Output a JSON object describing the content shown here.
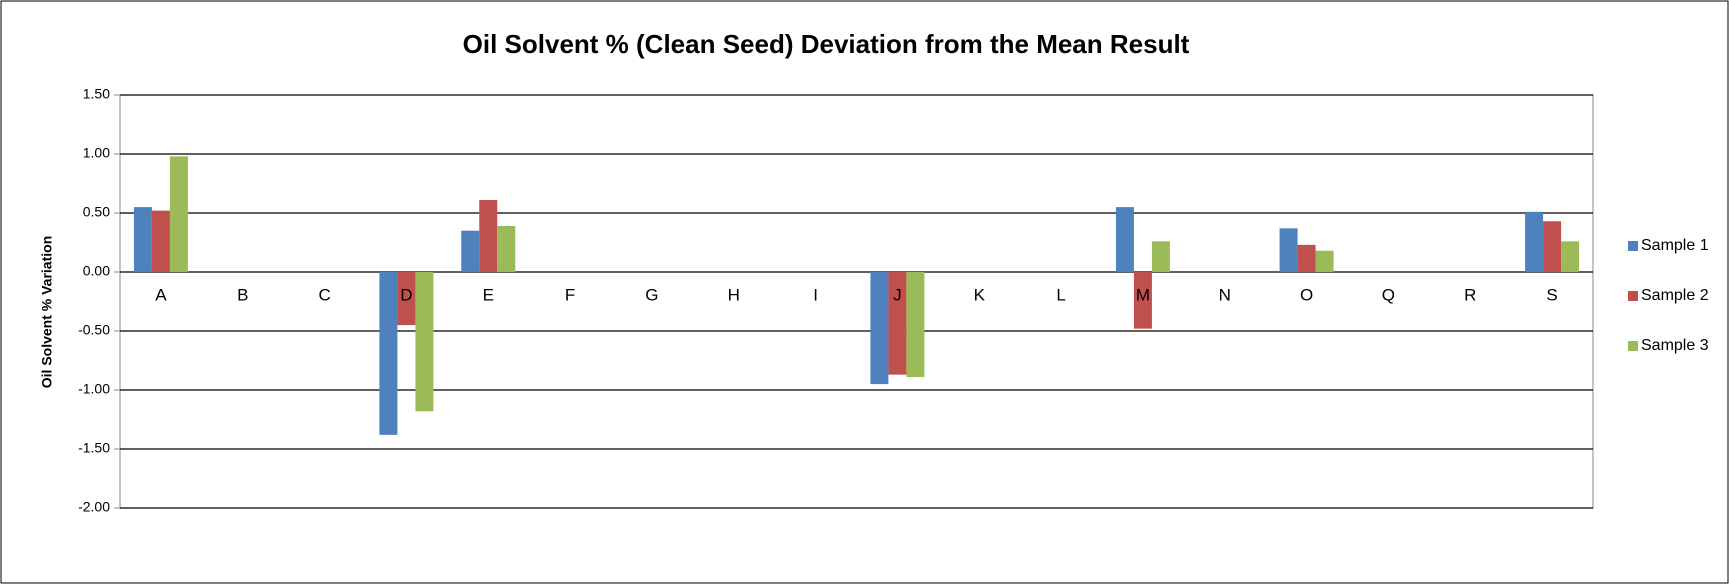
{
  "chart_data": {
    "type": "bar",
    "title": "Oil Solvent % (Clean Seed) Deviation from the Mean Result",
    "y_label": "Oil Solvent % Variation",
    "categories": [
      "A",
      "B",
      "C",
      "D",
      "E",
      "F",
      "G",
      "H",
      "I",
      "J",
      "K",
      "L",
      "M",
      "N",
      "O",
      "Q",
      "R",
      "S"
    ],
    "series": [
      {
        "name": "Sample 1",
        "color": "#4f81bd",
        "values": [
          0.55,
          null,
          null,
          -1.38,
          0.35,
          null,
          null,
          null,
          null,
          -0.95,
          null,
          null,
          0.55,
          null,
          0.37,
          null,
          null,
          0.51
        ]
      },
      {
        "name": "Sample 2",
        "color": "#c0504d",
        "values": [
          0.52,
          null,
          null,
          -0.45,
          0.61,
          null,
          null,
          null,
          null,
          -0.87,
          null,
          null,
          -0.48,
          null,
          0.23,
          null,
          null,
          0.43
        ]
      },
      {
        "name": "Sample 3",
        "color": "#9bbb59",
        "values": [
          0.98,
          null,
          null,
          -1.18,
          0.39,
          null,
          null,
          null,
          null,
          -0.89,
          null,
          null,
          0.26,
          null,
          0.18,
          null,
          null,
          0.26
        ]
      }
    ],
    "ylim": [
      -2,
      1.5
    ],
    "yticks": [
      {
        "value": -2,
        "label": "-2.00"
      },
      {
        "value": -1.5,
        "label": "-1.50"
      },
      {
        "value": -1,
        "label": "-1.00"
      },
      {
        "value": -0.5,
        "label": "-0.50"
      },
      {
        "value": 0,
        "label": "0.00"
      },
      {
        "value": 0.5,
        "label": "0.50"
      },
      {
        "value": 1,
        "label": "1.00"
      },
      {
        "value": 1.5,
        "label": "1.50"
      }
    ],
    "grid": true,
    "legend": "right"
  }
}
